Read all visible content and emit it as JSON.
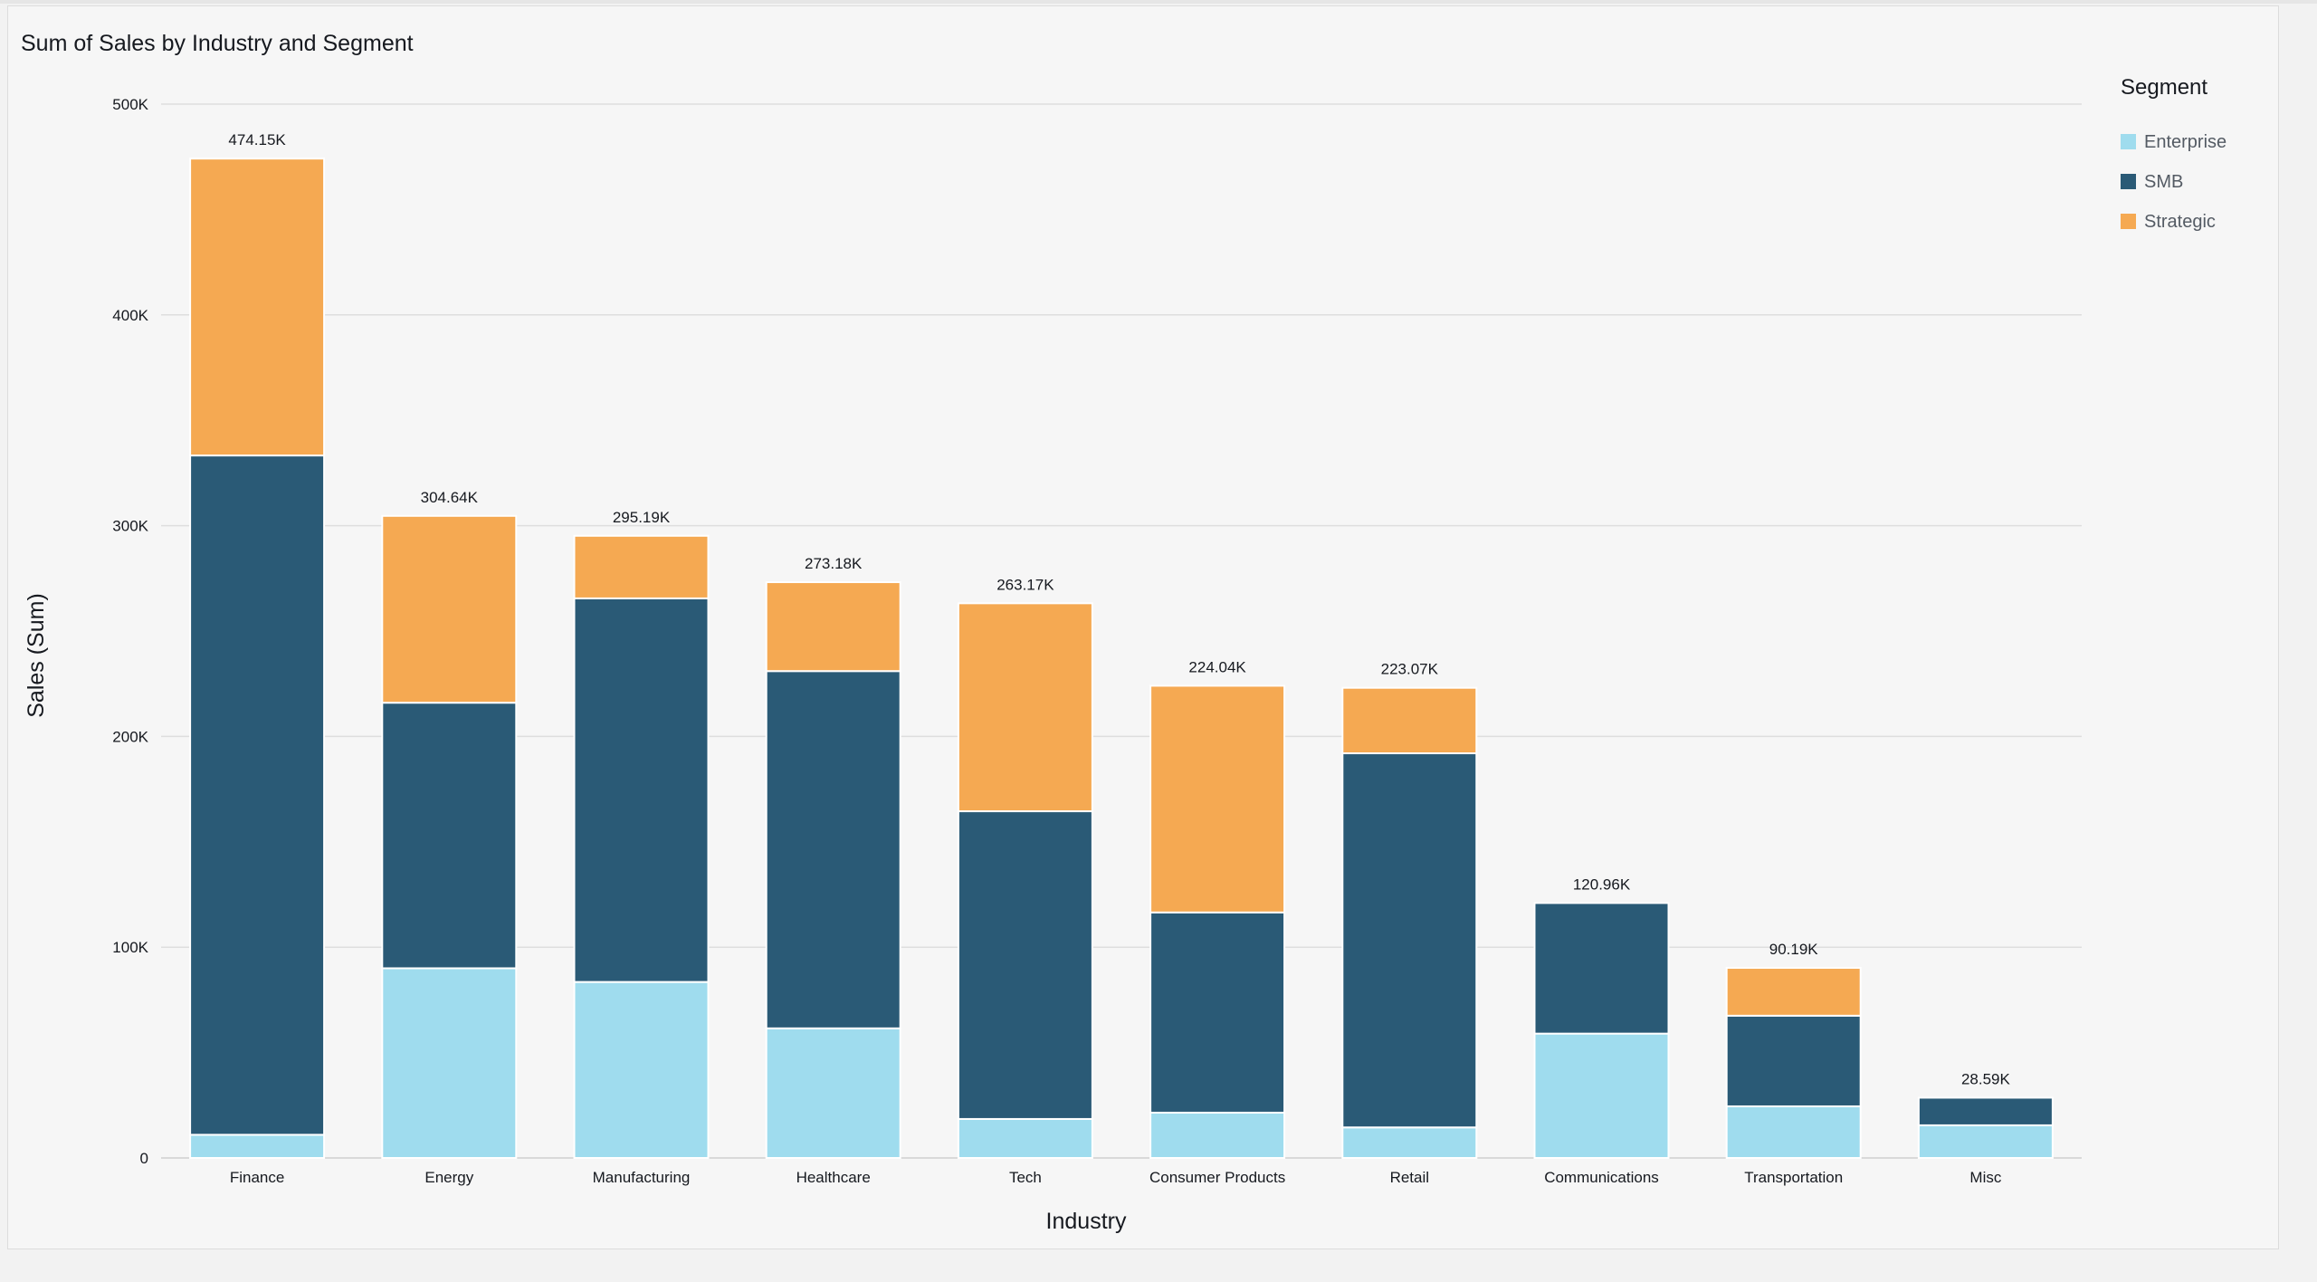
{
  "chart_data": {
    "type": "bar",
    "stacked": true,
    "title": "Sum of Sales by Industry and Segment",
    "xlabel": "Industry",
    "ylabel": "Sales (Sum)",
    "ylim": [
      0,
      500000
    ],
    "yticks": [
      0,
      100000,
      200000,
      300000,
      400000,
      500000
    ],
    "ytick_labels": [
      "0",
      "100K",
      "200K",
      "300K",
      "400K",
      "500K"
    ],
    "grid": true,
    "legend_title": "Segment",
    "legend_position": "top-right",
    "categories": [
      "Finance",
      "Energy",
      "Manufacturing",
      "Healthcare",
      "Tech",
      "Consumer Products",
      "Retail",
      "Communications",
      "Transportation",
      "Misc"
    ],
    "series": [
      {
        "name": "Enterprise",
        "color": "#9fdcee",
        "values": [
          11000,
          90000,
          83500,
          61500,
          18500,
          21500,
          14500,
          59000,
          24500,
          15500
        ]
      },
      {
        "name": "SMB",
        "color": "#2a5a76",
        "values": [
          322300,
          126000,
          182000,
          169500,
          146000,
          95000,
          177500,
          61960,
          43000,
          13090
        ]
      },
      {
        "name": "Strategic",
        "color": "#f5a952",
        "values": [
          140850,
          88640,
          29690,
          42180,
          98670,
          107540,
          31070,
          0,
          22690,
          0
        ]
      }
    ],
    "totals": [
      474150,
      304640,
      295190,
      273180,
      263170,
      224040,
      223070,
      120960,
      90190,
      28590
    ],
    "total_labels": [
      "474.15K",
      "304.64K",
      "295.19K",
      "273.18K",
      "263.17K",
      "224.04K",
      "223.07K",
      "120.96K",
      "90.19K",
      "28.59K"
    ]
  }
}
